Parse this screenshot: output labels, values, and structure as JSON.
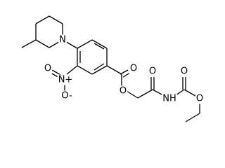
{
  "atoms": [
    {
      "label": "N"
    },
    {
      "label": "N+"
    },
    {
      "label": "O"
    },
    {
      "label": "O-"
    },
    {
      "label": "O"
    },
    {
      "label": "O"
    },
    {
      "label": "O"
    },
    {
      "label": "NH"
    },
    {
      "label": "O"
    },
    {
      "label": "O"
    }
  ]
}
